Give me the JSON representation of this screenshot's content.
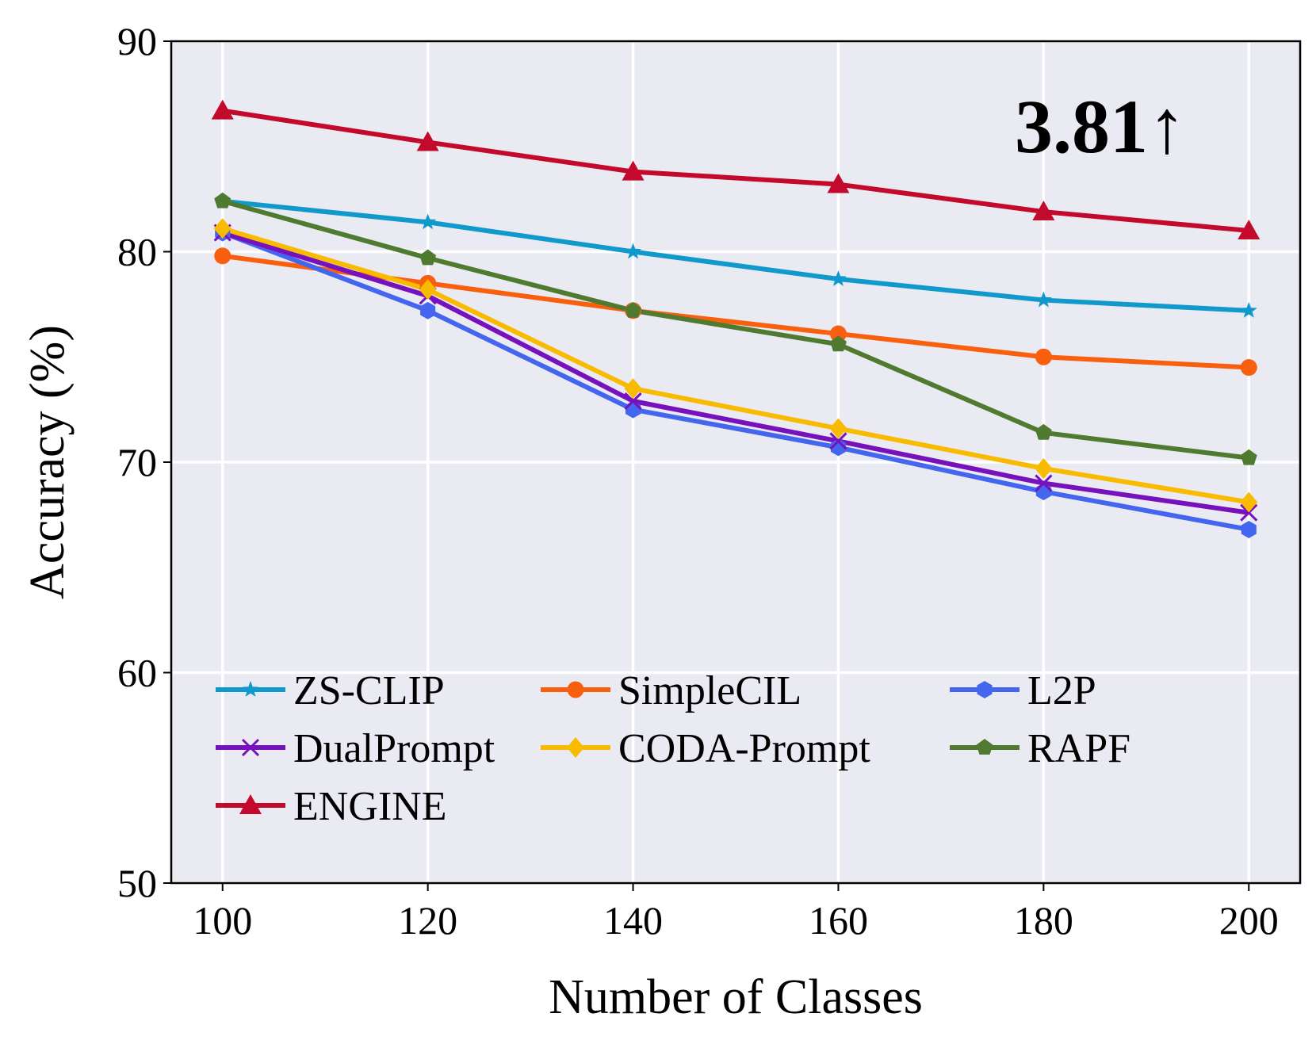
{
  "chart_data": {
    "type": "line",
    "title": "",
    "xlabel": "Number of Classes",
    "ylabel": "Accuracy (%)",
    "x": [
      100,
      120,
      140,
      160,
      180,
      200
    ],
    "xticks": [
      "100",
      "120",
      "140",
      "160",
      "180",
      "200"
    ],
    "yticks": [
      "50",
      "60",
      "70",
      "80",
      "90"
    ],
    "ylim": [
      50,
      90
    ],
    "xlim": [
      95,
      205
    ],
    "grid": true,
    "legend_position": "lower-left",
    "annotation": "3.81↑",
    "series": [
      {
        "name": "ZS-CLIP",
        "color": "#1199cc",
        "marker": "star",
        "values": [
          82.4,
          81.4,
          80.0,
          78.7,
          77.7,
          77.2
        ]
      },
      {
        "name": "SimpleCIL",
        "color": "#f86010",
        "marker": "circle",
        "values": [
          79.8,
          78.5,
          77.2,
          76.1,
          75.0,
          74.5
        ]
      },
      {
        "name": "L2P",
        "color": "#4466ee",
        "marker": "hexagon",
        "values": [
          80.9,
          77.2,
          72.5,
          70.7,
          68.6,
          66.8
        ]
      },
      {
        "name": "DualPrompt",
        "color": "#7711bb",
        "marker": "x",
        "values": [
          80.9,
          77.9,
          72.9,
          71.0,
          69.0,
          67.6
        ]
      },
      {
        "name": "CODA-Prompt",
        "color": "#f8bb00",
        "marker": "diamond",
        "values": [
          81.1,
          78.2,
          73.5,
          71.6,
          69.7,
          68.1
        ]
      },
      {
        "name": "RAPF",
        "color": "#4f7a30",
        "marker": "pentagon",
        "values": [
          82.4,
          79.7,
          77.2,
          75.6,
          71.4,
          70.2
        ]
      },
      {
        "name": "ENGINE",
        "color": "#c40a2c",
        "marker": "triangle",
        "values": [
          86.7,
          85.2,
          83.8,
          83.2,
          81.9,
          81.0
        ]
      }
    ]
  }
}
